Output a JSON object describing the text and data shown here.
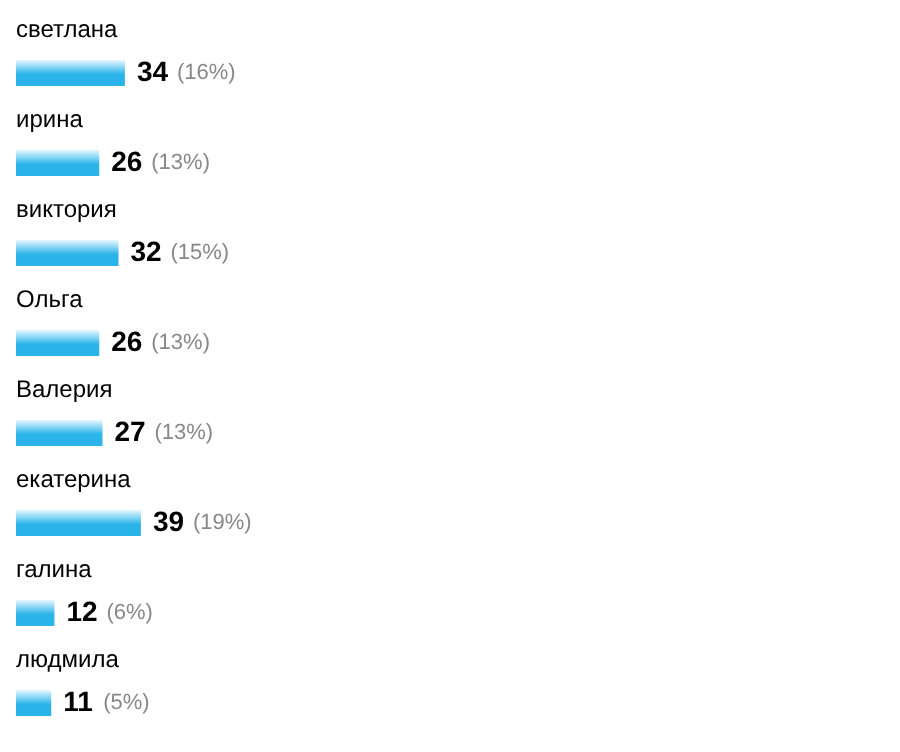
{
  "chart_data": {
    "type": "bar",
    "orientation": "horizontal",
    "categories": [
      "светлана",
      "ирина",
      "виктория",
      "Ольга",
      "Валерия",
      "екатерина",
      "галина",
      "людмила"
    ],
    "values": [
      34,
      26,
      32,
      26,
      27,
      39,
      12,
      11
    ],
    "color": "#2ab4ea",
    "xlim": [
      0,
      276
    ],
    "data_labels": true,
    "annotations": [
      {
        "text": "(16%)",
        "x": 34,
        "y": "светлана"
      },
      {
        "text": "(13%)",
        "x": 26,
        "y": "ирина"
      },
      {
        "text": "(15%)",
        "x": 32,
        "y": "виктория"
      },
      {
        "text": "(13%)",
        "x": 26,
        "y": "Ольга"
      },
      {
        "text": "(13%)",
        "x": 27,
        "y": "Валерия"
      },
      {
        "text": "(19%)",
        "x": 39,
        "y": "екатерина"
      },
      {
        "text": "(6%)",
        "x": 12,
        "y": "галина"
      },
      {
        "text": "(5%)",
        "x": 11,
        "y": "людмила"
      }
    ]
  }
}
